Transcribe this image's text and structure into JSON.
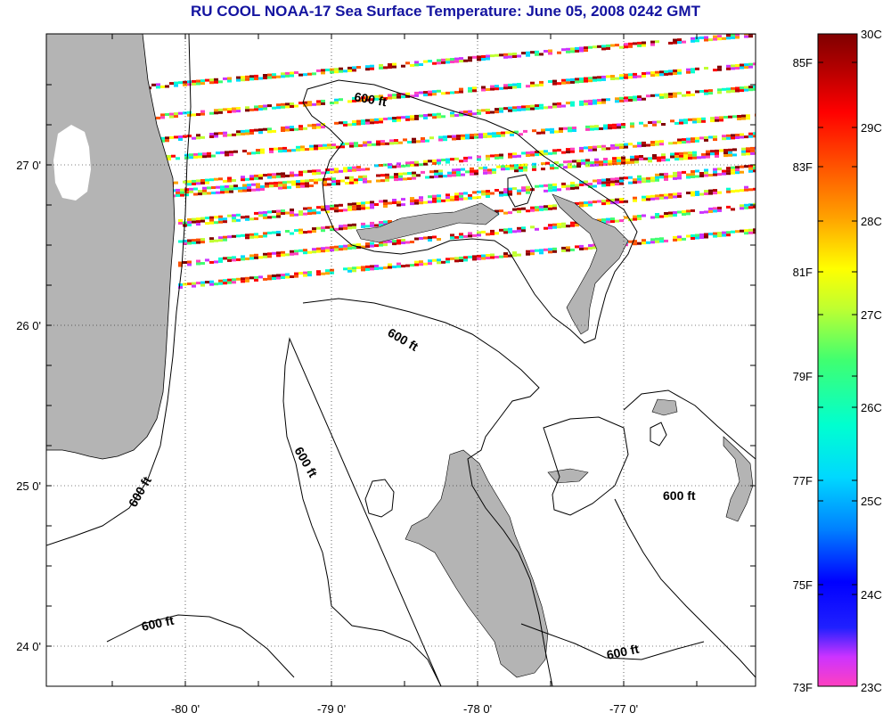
{
  "title": "RU COOL  NOAA-17  Sea Surface Temperature:  June 05, 2008 0242 GMT",
  "map": {
    "longitude_labels": [
      "-80 0'",
      "-79 0'",
      "-78 0'",
      "-77 0'"
    ],
    "latitude_labels": [
      "27 0'",
      "26 0'",
      "25 0'",
      "24 0'"
    ],
    "contour_label": "600 ft",
    "land_color": "#b4b4b4",
    "grid": true
  },
  "colorbar": {
    "fahrenheit_labels": [
      "85F",
      "83F",
      "81F",
      "79F",
      "77F",
      "75F",
      "73F"
    ],
    "celsius_labels": [
      "30C",
      "29C",
      "28C",
      "27C",
      "26C",
      "25C",
      "24C",
      "23C"
    ],
    "range_c": [
      23,
      30
    ]
  }
}
